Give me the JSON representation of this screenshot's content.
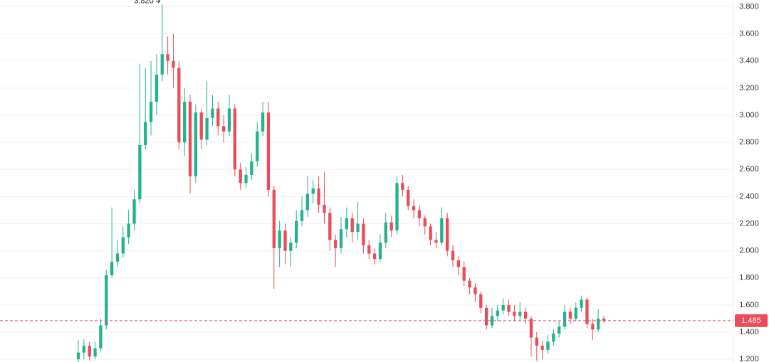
{
  "chart_data": {
    "type": "candlestick",
    "up_color": "#22b38c",
    "down_color": "#ec4b57",
    "grid": true,
    "ylim": [
      1.18,
      3.85
    ],
    "yticks": [
      {
        "value": 1.2,
        "label": "1.200"
      },
      {
        "value": 1.4,
        "label": "1.400"
      },
      {
        "value": 1.6,
        "label": "1.600"
      },
      {
        "value": 1.8,
        "label": "1.800"
      },
      {
        "value": 2.0,
        "label": "2.000"
      },
      {
        "value": 2.2,
        "label": "2.200"
      },
      {
        "value": 2.4,
        "label": "2.400"
      },
      {
        "value": 2.6,
        "label": "2.600"
      },
      {
        "value": 2.8,
        "label": "2.800"
      },
      {
        "value": 3.0,
        "label": "3.000"
      },
      {
        "value": 3.2,
        "label": "3.200"
      },
      {
        "value": 3.4,
        "label": "3.400"
      },
      {
        "value": 3.6,
        "label": "3.600"
      },
      {
        "value": 3.8,
        "label": "3.800"
      }
    ],
    "last_price": {
      "value": 1.485,
      "label": "1.485"
    },
    "high_annotation": {
      "value": 3.82,
      "label": "3.820"
    },
    "open": [
      1.2,
      1.25,
      1.3,
      1.22,
      1.28,
      1.45,
      1.82,
      1.92,
      1.98,
      2.1,
      2.2,
      2.38,
      2.78,
      2.95,
      3.1,
      3.3,
      3.45,
      3.4,
      3.35,
      2.8,
      3.1,
      2.55,
      3.02,
      2.82,
      2.98,
      3.05,
      2.92,
      2.88,
      3.05,
      2.6,
      2.5,
      2.56,
      2.66,
      2.88,
      3.02,
      2.45,
      2.02,
      2.15,
      2.0,
      2.06,
      2.22,
      2.3,
      2.42,
      2.46,
      2.34,
      2.28,
      2.08,
      2.02,
      2.16,
      2.24,
      2.14,
      2.2,
      2.04,
      1.98,
      1.94,
      2.06,
      2.21,
      2.15,
      2.5,
      2.45,
      2.33,
      2.3,
      2.24,
      2.18,
      2.08,
      2.06,
      2.24,
      2.0,
      1.93,
      1.88,
      1.78,
      1.73,
      1.68,
      1.58,
      1.45,
      1.52,
      1.56,
      1.6,
      1.55,
      1.52,
      1.55,
      1.5,
      1.36,
      1.3,
      1.27,
      1.33,
      1.39,
      1.44,
      1.55,
      1.5,
      1.58,
      1.64,
      1.46,
      1.42,
      1.5
    ],
    "high": [
      1.34,
      1.35,
      1.33,
      1.33,
      1.5,
      1.86,
      2.32,
      2.08,
      2.18,
      2.3,
      2.45,
      3.38,
      3.35,
      3.4,
      3.45,
      3.82,
      3.58,
      3.6,
      3.4,
      3.2,
      3.15,
      3.08,
      3.05,
      3.25,
      3.15,
      3.1,
      3.0,
      3.15,
      3.08,
      2.65,
      2.62,
      2.72,
      2.95,
      3.1,
      3.1,
      2.48,
      2.22,
      2.2,
      2.1,
      2.3,
      2.4,
      2.55,
      2.52,
      2.55,
      2.58,
      2.32,
      2.12,
      2.25,
      2.32,
      2.28,
      2.36,
      2.24,
      2.08,
      2.02,
      2.12,
      2.28,
      2.26,
      2.55,
      2.56,
      2.48,
      2.38,
      2.34,
      2.26,
      2.2,
      2.14,
      2.32,
      2.28,
      2.04,
      1.96,
      1.92,
      1.8,
      1.76,
      1.7,
      1.6,
      1.58,
      1.6,
      1.65,
      1.64,
      1.6,
      1.62,
      1.58,
      1.52,
      1.4,
      1.34,
      1.38,
      1.42,
      1.48,
      1.6,
      1.58,
      1.62,
      1.67,
      1.66,
      1.5,
      1.57,
      1.52
    ],
    "low": [
      1.18,
      1.2,
      1.19,
      1.2,
      1.26,
      1.42,
      1.8,
      1.88,
      1.95,
      2.05,
      2.15,
      2.35,
      2.75,
      2.85,
      3.0,
      3.25,
      3.3,
      3.2,
      2.75,
      2.7,
      2.42,
      2.5,
      2.75,
      2.78,
      2.92,
      2.85,
      2.8,
      2.85,
      2.55,
      2.45,
      2.46,
      2.52,
      2.62,
      2.85,
      2.4,
      1.72,
      1.88,
      1.9,
      1.88,
      2.02,
      2.18,
      2.25,
      2.35,
      2.28,
      2.2,
      2.0,
      1.88,
      1.98,
      2.1,
      2.06,
      2.08,
      1.98,
      1.94,
      1.9,
      1.92,
      2.02,
      2.1,
      2.12,
      2.4,
      2.3,
      2.24,
      2.18,
      2.12,
      2.04,
      2.02,
      2.04,
      1.96,
      1.88,
      1.82,
      1.74,
      1.68,
      1.62,
      1.54,
      1.42,
      1.43,
      1.48,
      1.53,
      1.52,
      1.48,
      1.48,
      1.46,
      1.22,
      1.19,
      1.2,
      1.24,
      1.3,
      1.36,
      1.42,
      1.46,
      1.48,
      1.55,
      1.43,
      1.34,
      1.4,
      1.47
    ],
    "close": [
      1.25,
      1.3,
      1.22,
      1.28,
      1.45,
      1.82,
      1.92,
      1.98,
      2.1,
      2.2,
      2.38,
      2.78,
      2.95,
      3.1,
      3.3,
      3.45,
      3.4,
      3.35,
      2.8,
      3.1,
      2.55,
      3.02,
      2.82,
      2.98,
      3.05,
      2.92,
      2.88,
      3.05,
      2.6,
      2.5,
      2.56,
      2.66,
      2.88,
      3.02,
      2.45,
      2.02,
      2.15,
      2.0,
      2.06,
      2.22,
      2.3,
      2.42,
      2.46,
      2.34,
      2.28,
      2.08,
      2.02,
      2.16,
      2.24,
      2.14,
      2.2,
      2.04,
      1.98,
      1.94,
      2.06,
      2.21,
      2.15,
      2.5,
      2.45,
      2.33,
      2.3,
      2.24,
      2.18,
      2.08,
      2.06,
      2.24,
      2.0,
      1.93,
      1.88,
      1.78,
      1.73,
      1.68,
      1.58,
      1.45,
      1.52,
      1.56,
      1.6,
      1.55,
      1.52,
      1.55,
      1.5,
      1.36,
      1.3,
      1.27,
      1.33,
      1.39,
      1.44,
      1.55,
      1.5,
      1.58,
      1.64,
      1.46,
      1.42,
      1.5,
      1.485
    ]
  }
}
